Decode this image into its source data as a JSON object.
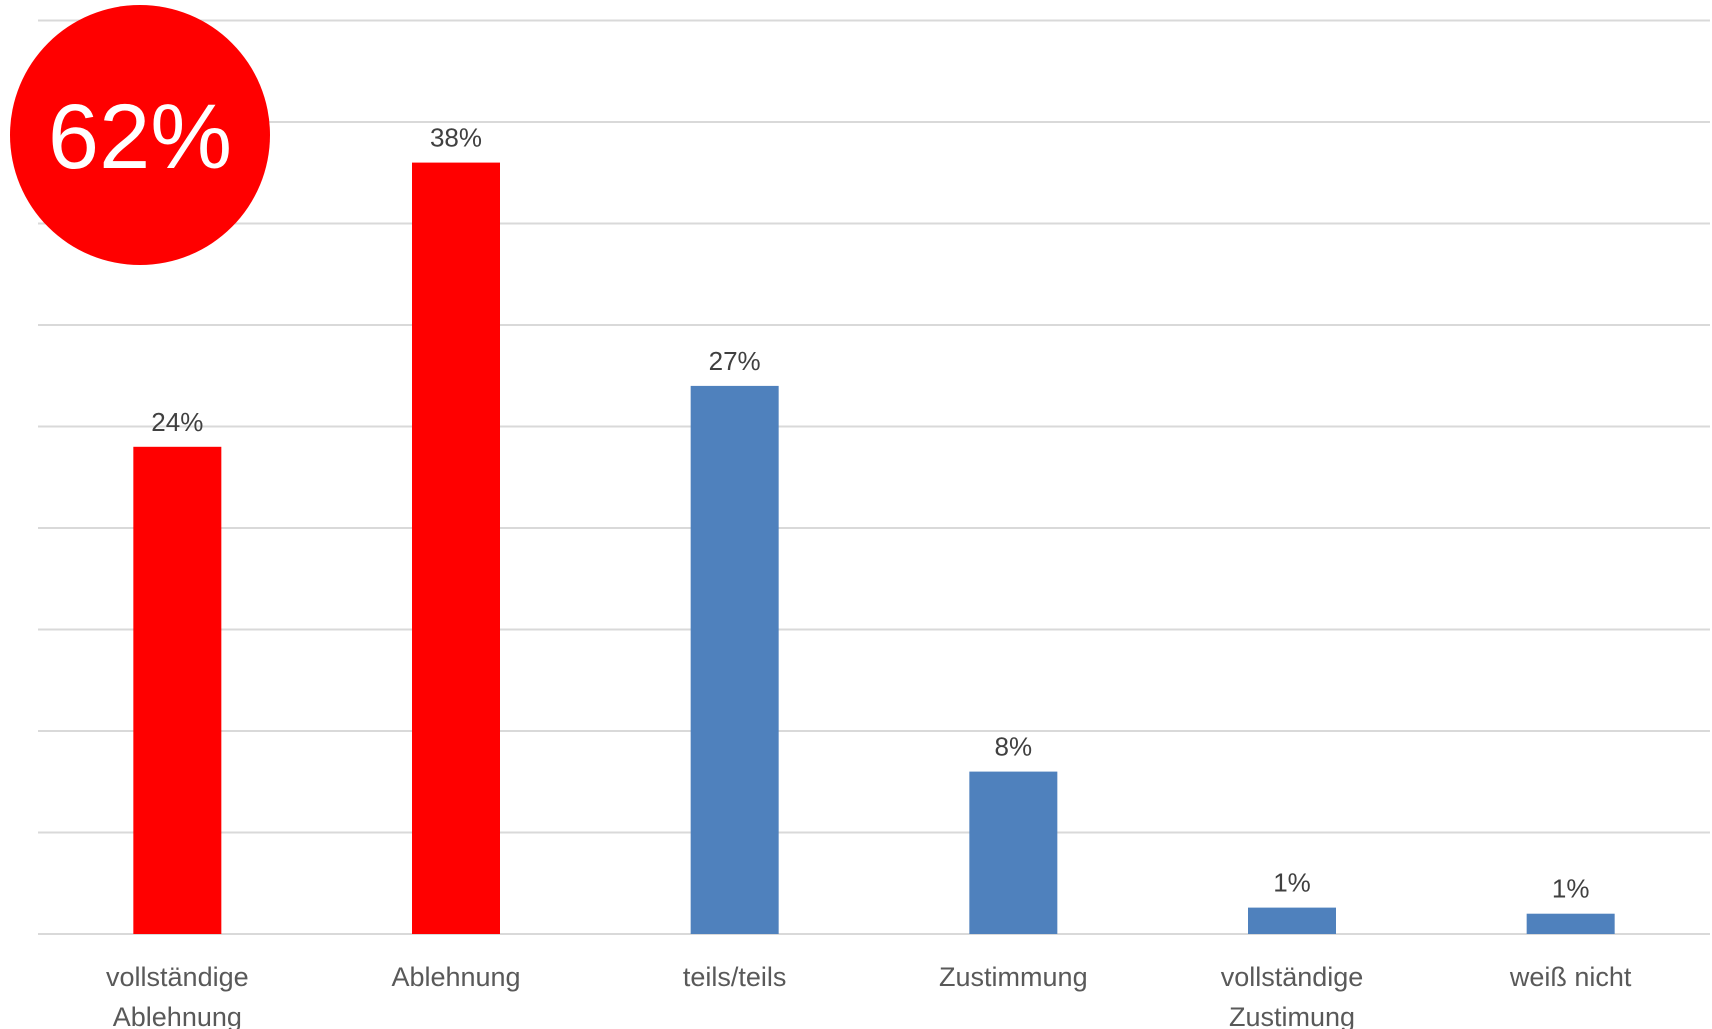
{
  "chart_data": {
    "type": "bar",
    "categories": [
      [
        "vollständige",
        "Ablehnung"
      ],
      [
        "Ablehnung"
      ],
      [
        "teils/teils"
      ],
      [
        "Zustimmung"
      ],
      [
        "vollständige",
        "Zustimung"
      ],
      [
        "weiß nicht"
      ]
    ],
    "values": [
      24,
      38,
      27,
      8,
      1.3,
      1
    ],
    "data_labels": [
      "24%",
      "38%",
      "27%",
      "8%",
      "1%",
      "1%"
    ],
    "bar_colors": [
      "#ff0000",
      "#ff0000",
      "#4f81bd",
      "#4f81bd",
      "#4f81bd",
      "#4f81bd"
    ],
    "ylim": [
      0,
      45
    ],
    "grid": true,
    "y_tick_labels_shown": false,
    "title": "",
    "xlabel": "",
    "ylabel": ""
  },
  "badge": {
    "text": "62%",
    "color": "#ff0000"
  }
}
